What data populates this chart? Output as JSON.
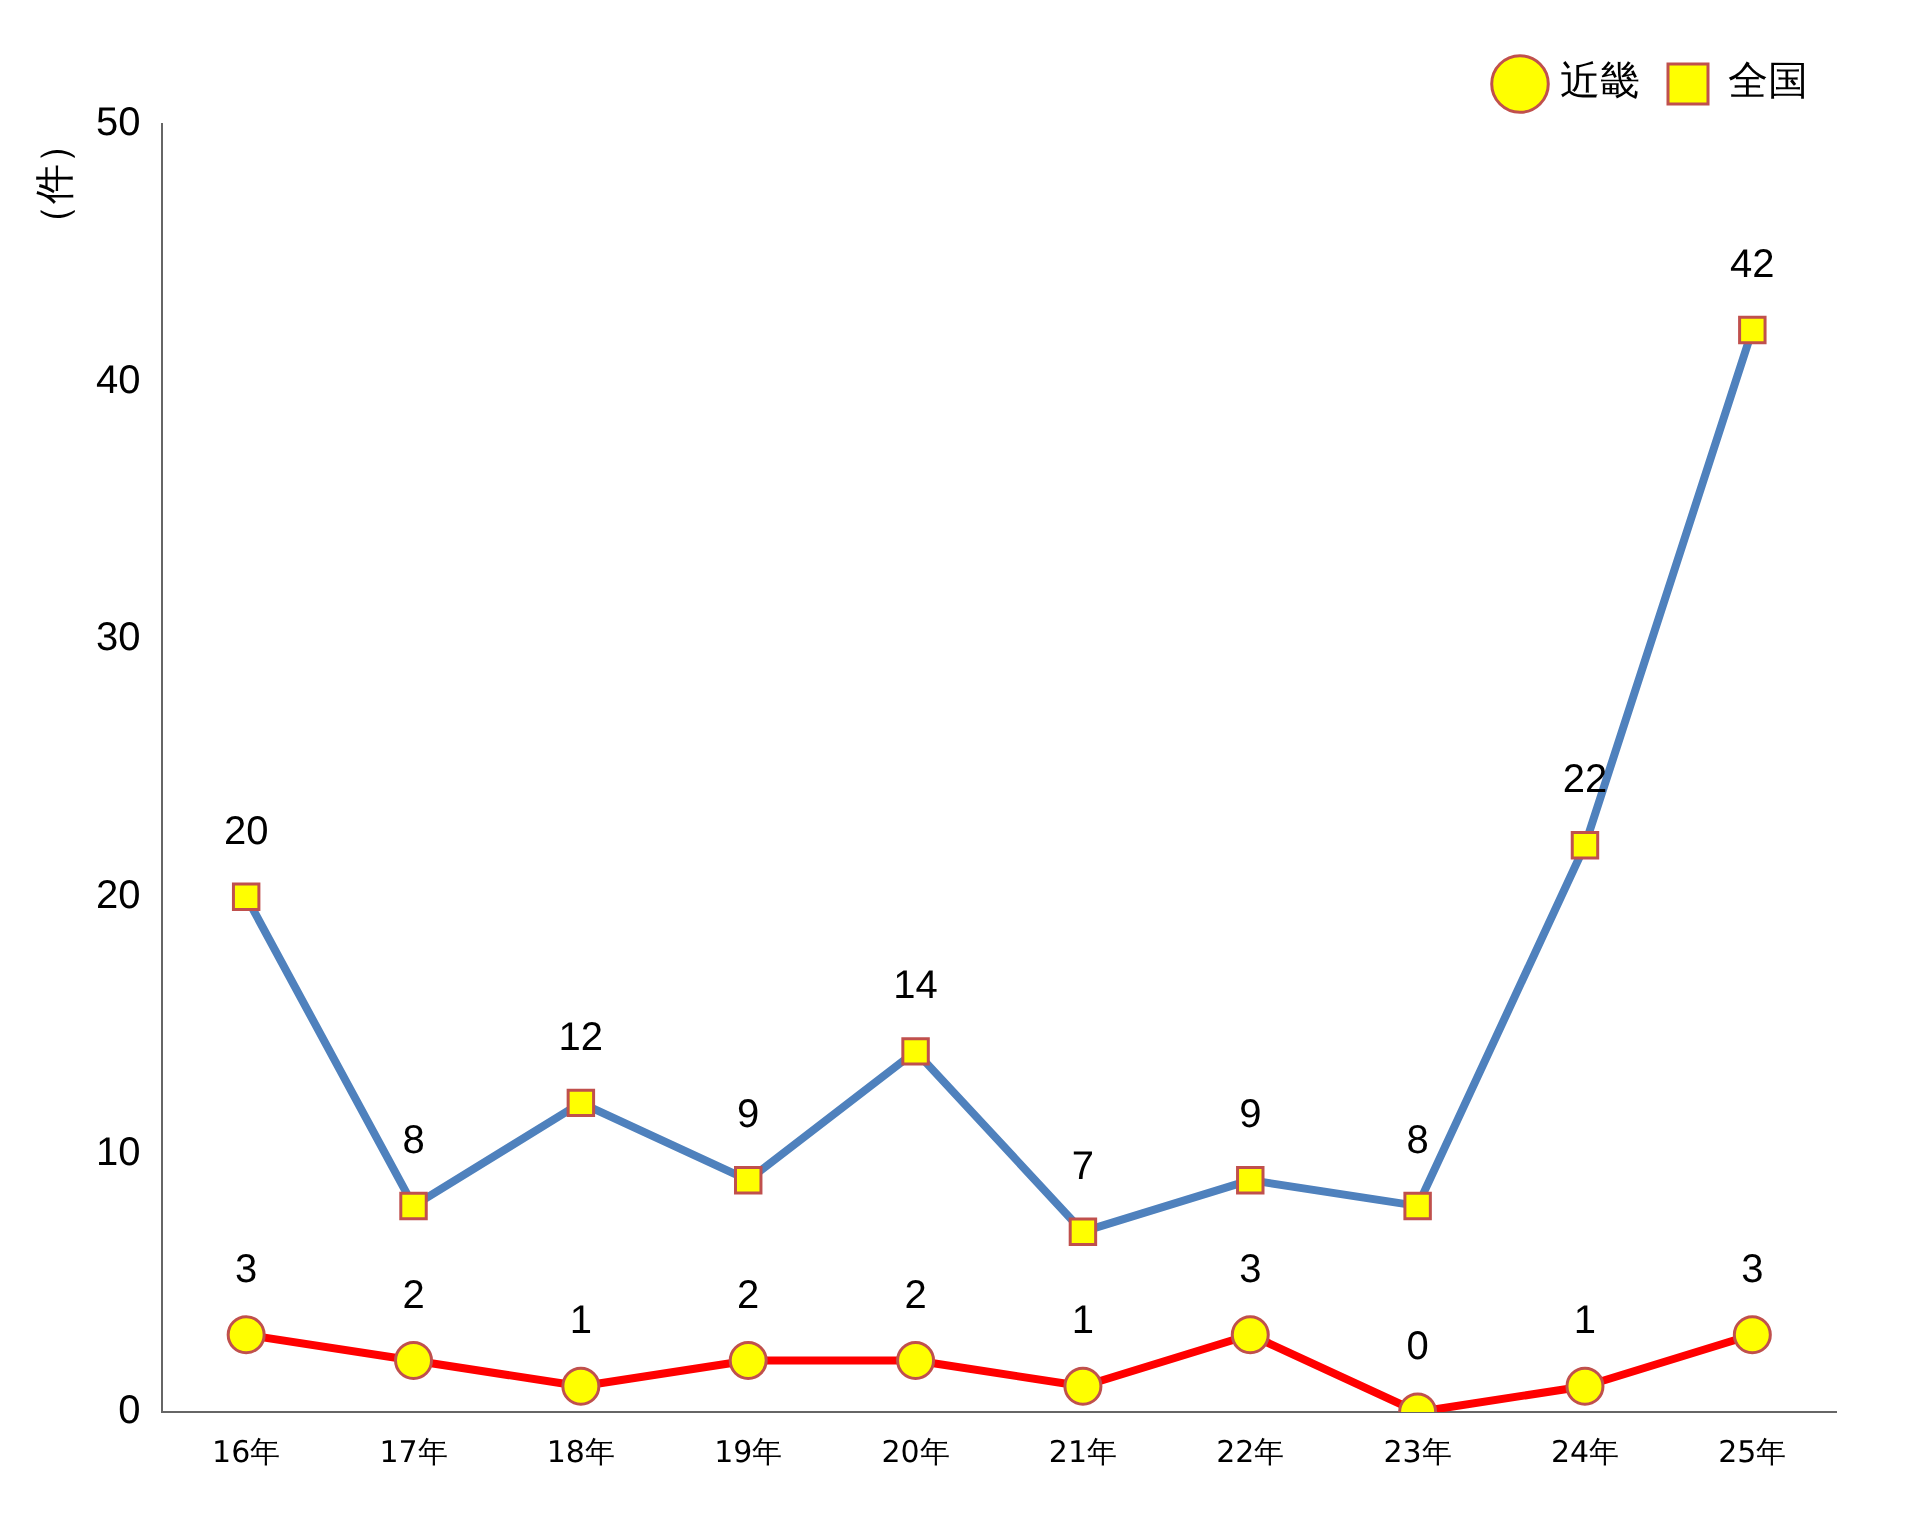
{
  "chart_data": {
    "type": "line",
    "ylabel": "（件）",
    "categories": [
      "16年",
      "17年",
      "18年",
      "19年",
      "20年",
      "21年",
      "22年",
      "23年",
      "24年",
      "25年"
    ],
    "series": [
      {
        "name": "近畿",
        "color": "#ff0000",
        "marker": "circle",
        "values": [
          3,
          2,
          1,
          2,
          2,
          1,
          3,
          0,
          1,
          3
        ]
      },
      {
        "name": "全国",
        "color": "#4f81bd",
        "marker": "square",
        "values": [
          20,
          8,
          12,
          9,
          14,
          7,
          9,
          8,
          22,
          42
        ]
      }
    ],
    "ylim": [
      0,
      50
    ],
    "yticks": [
      0,
      10,
      20,
      30,
      40,
      50
    ],
    "grid": false,
    "legend": "top right",
    "data_labels": true
  }
}
